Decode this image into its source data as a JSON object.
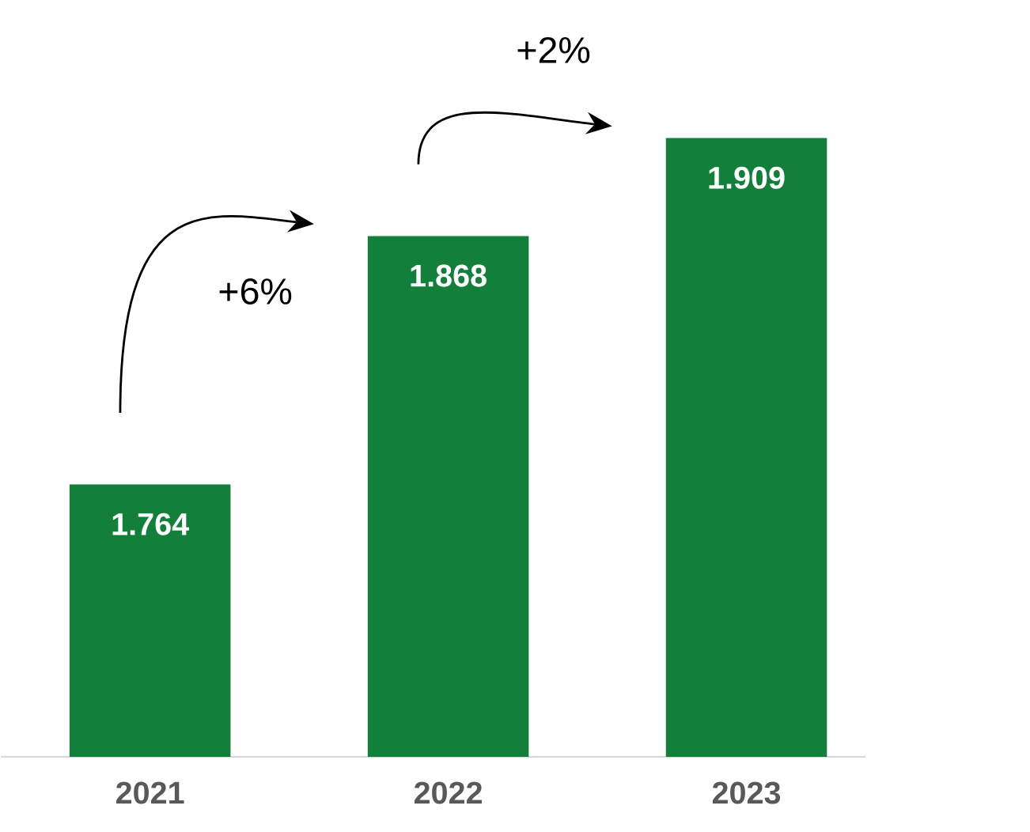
{
  "chart_data": {
    "type": "bar",
    "categories": [
      "2021",
      "2022",
      "2023"
    ],
    "values": [
      1.764,
      1.868,
      1.909
    ],
    "color": "#12803a",
    "data_labels": true,
    "ylim": [
      1.65,
      1.909
    ],
    "tick_labels": "x",
    "annotations": [
      "+6%",
      "+2%"
    ]
  }
}
